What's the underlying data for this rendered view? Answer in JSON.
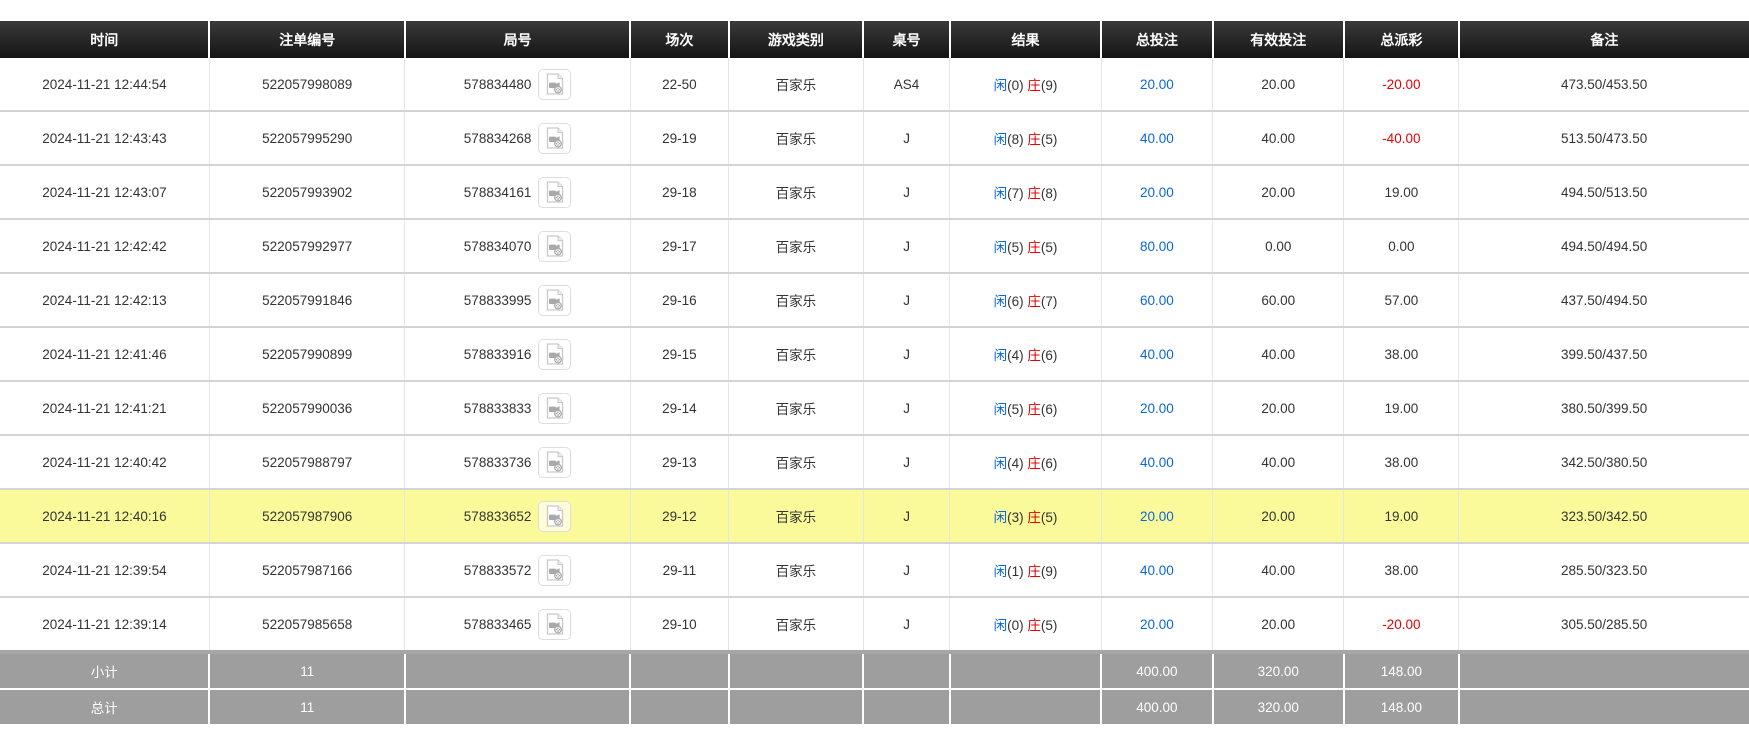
{
  "colors": {
    "header_bg": "#1f1f1f",
    "accent_blue": "#0a66dd",
    "negative_red": "#e60000",
    "highlight_yellow": "#fafa9b",
    "summary_bg": "#9e9e9e"
  },
  "table": {
    "columns": [
      {
        "key": "time",
        "label": "时间"
      },
      {
        "key": "bet_id",
        "label": "注单编号"
      },
      {
        "key": "game_no",
        "label": "局号"
      },
      {
        "key": "session",
        "label": "场次"
      },
      {
        "key": "game_type",
        "label": "游戏类别"
      },
      {
        "key": "table_no",
        "label": "桌号"
      },
      {
        "key": "result",
        "label": "结果"
      },
      {
        "key": "total_bet",
        "label": "总投注"
      },
      {
        "key": "valid_bet",
        "label": "有效投注"
      },
      {
        "key": "payout",
        "label": "总派彩"
      },
      {
        "key": "remark",
        "label": "备注"
      }
    ],
    "rows": [
      {
        "time": "2024-11-21 12:44:54",
        "bet_id": "522057998089",
        "game_no": "578834480",
        "session": "22-50",
        "game_type": "百家乐",
        "table_no": "AS4",
        "result": {
          "player_label": "闲",
          "player_score": "(0)",
          "banker_label": "庄",
          "banker_score": "(9)"
        },
        "total_bet": "20.00",
        "valid_bet": "20.00",
        "payout": "-20.00",
        "remark": "473.50/453.50",
        "highlighted": false
      },
      {
        "time": "2024-11-21 12:43:43",
        "bet_id": "522057995290",
        "game_no": "578834268",
        "session": "29-19",
        "game_type": "百家乐",
        "table_no": "J",
        "result": {
          "player_label": "闲",
          "player_score": "(8)",
          "banker_label": "庄",
          "banker_score": "(5)"
        },
        "total_bet": "40.00",
        "valid_bet": "40.00",
        "payout": "-40.00",
        "remark": "513.50/473.50",
        "highlighted": false
      },
      {
        "time": "2024-11-21 12:43:07",
        "bet_id": "522057993902",
        "game_no": "578834161",
        "session": "29-18",
        "game_type": "百家乐",
        "table_no": "J",
        "result": {
          "player_label": "闲",
          "player_score": "(7)",
          "banker_label": "庄",
          "banker_score": "(8)"
        },
        "total_bet": "20.00",
        "valid_bet": "20.00",
        "payout": "19.00",
        "remark": "494.50/513.50",
        "highlighted": false
      },
      {
        "time": "2024-11-21 12:42:42",
        "bet_id": "522057992977",
        "game_no": "578834070",
        "session": "29-17",
        "game_type": "百家乐",
        "table_no": "J",
        "result": {
          "player_label": "闲",
          "player_score": "(5)",
          "banker_label": "庄",
          "banker_score": "(5)"
        },
        "total_bet": "80.00",
        "valid_bet": "0.00",
        "payout": "0.00",
        "remark": "494.50/494.50",
        "highlighted": false
      },
      {
        "time": "2024-11-21 12:42:13",
        "bet_id": "522057991846",
        "game_no": "578833995",
        "session": "29-16",
        "game_type": "百家乐",
        "table_no": "J",
        "result": {
          "player_label": "闲",
          "player_score": "(6)",
          "banker_label": "庄",
          "banker_score": "(7)"
        },
        "total_bet": "60.00",
        "valid_bet": "60.00",
        "payout": "57.00",
        "remark": "437.50/494.50",
        "highlighted": false
      },
      {
        "time": "2024-11-21 12:41:46",
        "bet_id": "522057990899",
        "game_no": "578833916",
        "session": "29-15",
        "game_type": "百家乐",
        "table_no": "J",
        "result": {
          "player_label": "闲",
          "player_score": "(4)",
          "banker_label": "庄",
          "banker_score": "(6)"
        },
        "total_bet": "40.00",
        "valid_bet": "40.00",
        "payout": "38.00",
        "remark": "399.50/437.50",
        "highlighted": false
      },
      {
        "time": "2024-11-21 12:41:21",
        "bet_id": "522057990036",
        "game_no": "578833833",
        "session": "29-14",
        "game_type": "百家乐",
        "table_no": "J",
        "result": {
          "player_label": "闲",
          "player_score": "(5)",
          "banker_label": "庄",
          "banker_score": "(6)"
        },
        "total_bet": "20.00",
        "valid_bet": "20.00",
        "payout": "19.00",
        "remark": "380.50/399.50",
        "highlighted": false
      },
      {
        "time": "2024-11-21 12:40:42",
        "bet_id": "522057988797",
        "game_no": "578833736",
        "session": "29-13",
        "game_type": "百家乐",
        "table_no": "J",
        "result": {
          "player_label": "闲",
          "player_score": "(4)",
          "banker_label": "庄",
          "banker_score": "(6)"
        },
        "total_bet": "40.00",
        "valid_bet": "40.00",
        "payout": "38.00",
        "remark": "342.50/380.50",
        "highlighted": false
      },
      {
        "time": "2024-11-21 12:40:16",
        "bet_id": "522057987906",
        "game_no": "578833652",
        "session": "29-12",
        "game_type": "百家乐",
        "table_no": "J",
        "result": {
          "player_label": "闲",
          "player_score": "(3)",
          "banker_label": "庄",
          "banker_score": "(5)"
        },
        "total_bet": "20.00",
        "valid_bet": "20.00",
        "payout": "19.00",
        "remark": "323.50/342.50",
        "highlighted": true
      },
      {
        "time": "2024-11-21 12:39:54",
        "bet_id": "522057987166",
        "game_no": "578833572",
        "session": "29-11",
        "game_type": "百家乐",
        "table_no": "J",
        "result": {
          "player_label": "闲",
          "player_score": "(1)",
          "banker_label": "庄",
          "banker_score": "(9)"
        },
        "total_bet": "40.00",
        "valid_bet": "40.00",
        "payout": "38.00",
        "remark": "285.50/323.50",
        "highlighted": false
      },
      {
        "time": "2024-11-21 12:39:14",
        "bet_id": "522057985658",
        "game_no": "578833465",
        "session": "29-10",
        "game_type": "百家乐",
        "table_no": "J",
        "result": {
          "player_label": "闲",
          "player_score": "(0)",
          "banker_label": "庄",
          "banker_score": "(5)"
        },
        "total_bet": "20.00",
        "valid_bet": "20.00",
        "payout": "-20.00",
        "remark": "305.50/285.50",
        "highlighted": false
      }
    ],
    "summary_rows": [
      {
        "label": "小计",
        "count": "11",
        "total_bet": "400.00",
        "valid_bet": "320.00",
        "payout": "148.00"
      },
      {
        "label": "总计",
        "count": "11",
        "total_bet": "400.00",
        "valid_bet": "320.00",
        "payout": "148.00"
      }
    ]
  }
}
